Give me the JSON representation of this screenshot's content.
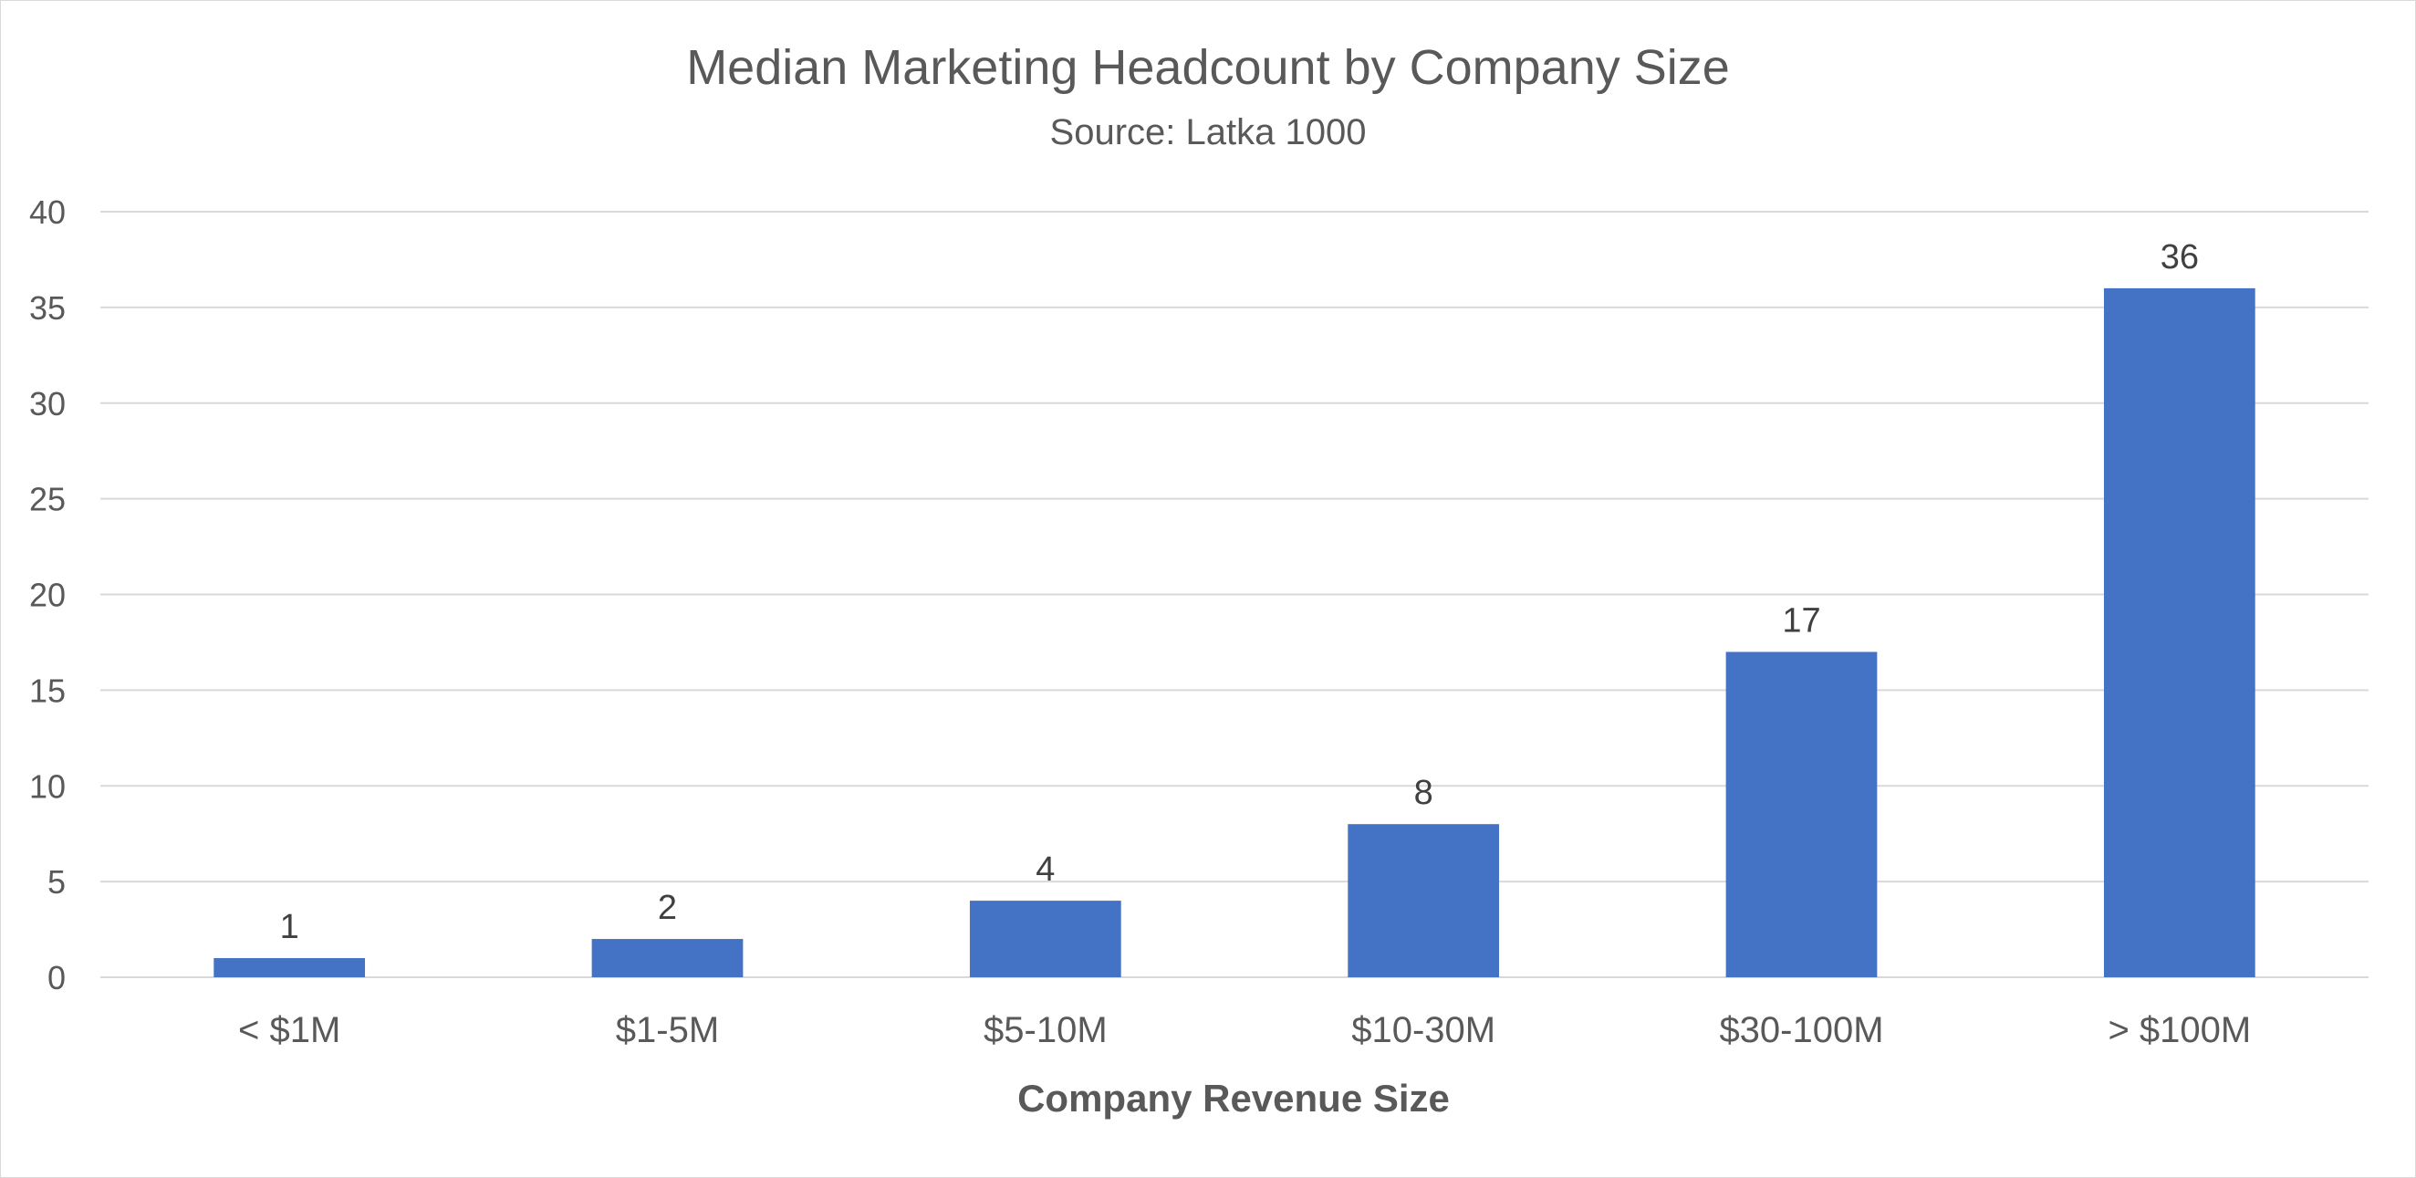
{
  "chart_data": {
    "type": "bar",
    "title": "Median Marketing Headcount by Company Size",
    "subtitle": "Source:  Latka 1000",
    "xlabel": "Company Revenue Size",
    "ylabel": "",
    "categories": [
      "< $1M",
      "$1-5M",
      "$5-10M",
      "$10-30M",
      "$30-100M",
      "> $100M"
    ],
    "values": [
      1,
      2,
      4,
      8,
      17,
      36
    ],
    "data_labels": [
      "1",
      "2",
      "4",
      "8",
      "17",
      "36"
    ],
    "ylim": [
      0,
      40
    ],
    "yticks": [
      0,
      5,
      10,
      15,
      20,
      25,
      30,
      35,
      40
    ],
    "ytick_labels": [
      "0",
      "5",
      "10",
      "15",
      "20",
      "25",
      "30",
      "35",
      "40"
    ],
    "grid": true,
    "legend": "none",
    "bar_color": "#4472C4"
  }
}
